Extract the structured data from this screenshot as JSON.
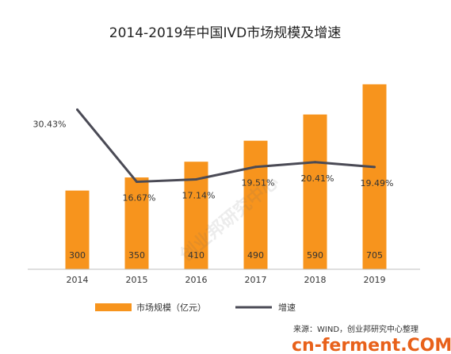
{
  "colors": {
    "bar": "#f7941d",
    "line": "#4a4a55",
    "axis": "#bfbfbf",
    "logo": "#e8611a"
  },
  "chart_data": {
    "type": "bar",
    "title": "2014-2019年中国IVD市场规模及增速",
    "categories": [
      "2014",
      "2015",
      "2016",
      "2017",
      "2018",
      "2019"
    ],
    "series": [
      {
        "name": "市场规模（亿元）",
        "type": "bar",
        "values": [
          300,
          350,
          410,
          490,
          590,
          705
        ],
        "labels": [
          "300",
          "350",
          "410",
          "490",
          "590",
          "705"
        ]
      },
      {
        "name": "增速",
        "type": "line",
        "values": [
          30.43,
          16.67,
          17.14,
          19.51,
          20.41,
          19.49
        ],
        "labels": [
          "30.43%",
          "16.67%",
          "17.14%",
          "19.51%",
          "20.41%",
          "19.49%"
        ]
      }
    ],
    "ylim_bar": [
      0,
      800
    ],
    "ylim_line": [
      0,
      40
    ],
    "legend": "bottom",
    "grid": false,
    "source": "来源：WIND，创业邦研究中心整理",
    "watermark": "创业邦研究中心"
  },
  "footer_logo": "cn-ferment.COM"
}
